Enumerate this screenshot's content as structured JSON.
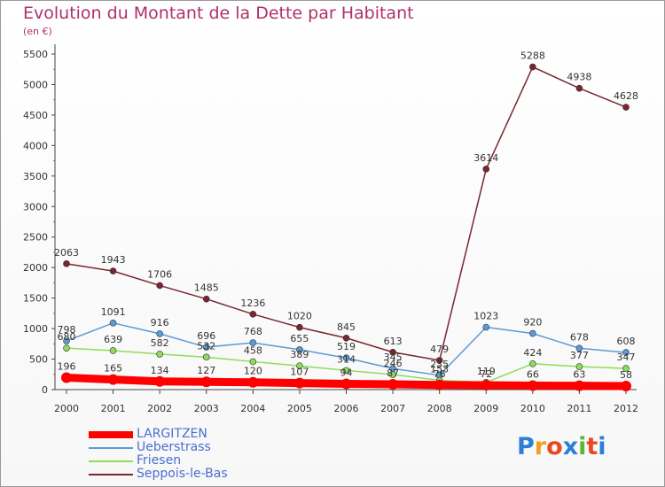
{
  "title": "Evolution du Montant de la Dette par Habitant",
  "subtitle": "(en €)",
  "logo": {
    "text": "Proxiti",
    "letters": [
      "P",
      "r",
      "o",
      "x",
      "i",
      "t",
      "i"
    ],
    "colors": [
      "#2b7fd4",
      "#f2a01a",
      "#e8491e",
      "#2b7fd4",
      "#5db830",
      "#e8491e",
      "#2b7fd4"
    ]
  },
  "chart_data": {
    "type": "line",
    "x": [
      "2000",
      "2001",
      "2002",
      "2003",
      "2004",
      "2005",
      "2006",
      "2007",
      "2008",
      "2009",
      "2010",
      "2011",
      "2012"
    ],
    "ylim": [
      0,
      5500
    ],
    "yticks": [
      0,
      500,
      1000,
      1500,
      2000,
      2500,
      3000,
      3500,
      4000,
      4500,
      5000,
      5500
    ],
    "grid": false,
    "legend_position": "bottom-left",
    "series": [
      {
        "name": "LARGITZEN",
        "color": "#ff0000",
        "values": [
          196,
          165,
          134,
          127,
          120,
          107,
          94,
          87,
          76,
          72,
          66,
          63,
          58
        ],
        "labels": [
          "196",
          "165",
          "134",
          "127",
          "120",
          "107",
          "94",
          "87",
          "76",
          "72",
          "66",
          "63",
          "58"
        ]
      },
      {
        "name": "Ueberstrass",
        "color": "#5b9bd5",
        "values": [
          798,
          1091,
          916,
          696,
          768,
          655,
          519,
          345,
          235,
          1023,
          920,
          678,
          608
        ],
        "labels": [
          "798",
          "1091",
          "916",
          "696",
          "768",
          "655",
          "519",
          "345",
          "235",
          "1023",
          "920",
          "678",
          "608"
        ]
      },
      {
        "name": "Friesen",
        "color": "#8fdc5a",
        "values": [
          680,
          639,
          582,
          532,
          458,
          389,
          314,
          246,
          153,
          119,
          424,
          377,
          347
        ],
        "labels": [
          "680",
          "639",
          "582",
          "532",
          "458",
          "389",
          "314",
          "246",
          "153",
          "119",
          "424",
          "377",
          "347"
        ]
      },
      {
        "name": "Seppois-le-Bas",
        "color": "#7a2630",
        "values": [
          2063,
          1943,
          1706,
          1485,
          1236,
          1020,
          845,
          613,
          479,
          3614,
          5288,
          4938,
          4628
        ],
        "labels": [
          "2063",
          "1943",
          "1706",
          "1485",
          "1236",
          "1020",
          "845",
          "613",
          "479",
          "3614",
          "5288",
          "4938",
          "4628"
        ]
      }
    ]
  }
}
